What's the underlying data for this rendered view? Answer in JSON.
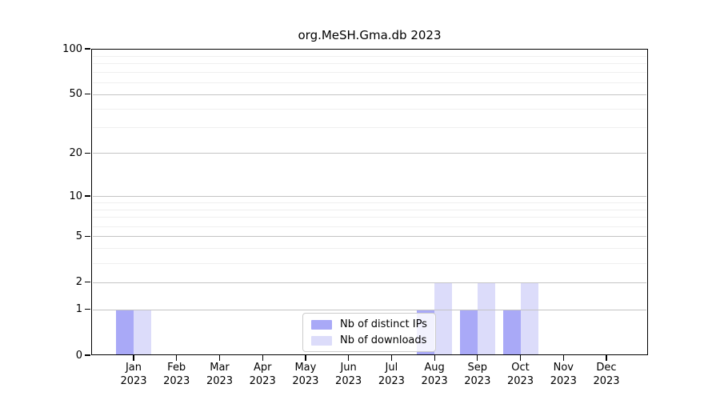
{
  "chart_data": {
    "type": "bar",
    "title": "org.MeSH.Gma.db 2023",
    "categories": [
      {
        "month": "Jan",
        "year": "2023"
      },
      {
        "month": "Feb",
        "year": "2023"
      },
      {
        "month": "Mar",
        "year": "2023"
      },
      {
        "month": "Apr",
        "year": "2023"
      },
      {
        "month": "May",
        "year": "2023"
      },
      {
        "month": "Jun",
        "year": "2023"
      },
      {
        "month": "Jul",
        "year": "2023"
      },
      {
        "month": "Aug",
        "year": "2023"
      },
      {
        "month": "Sep",
        "year": "2023"
      },
      {
        "month": "Oct",
        "year": "2023"
      },
      {
        "month": "Nov",
        "year": "2023"
      },
      {
        "month": "Dec",
        "year": "2023"
      }
    ],
    "series": [
      {
        "name": "Nb of distinct IPs",
        "color": "#a9a9f7",
        "values": [
          1,
          0,
          0,
          0,
          0,
          0,
          0,
          1,
          1,
          1,
          0,
          0
        ]
      },
      {
        "name": "Nb of downloads",
        "color": "#dcdcfa",
        "values": [
          1,
          0,
          0,
          0,
          0,
          0,
          0,
          2,
          2,
          2,
          0,
          0
        ]
      }
    ],
    "yscale": "log1p",
    "ylim": [
      0,
      100
    ],
    "yticks": [
      0,
      1,
      2,
      5,
      10,
      20,
      50,
      100
    ],
    "major_gridlines": [
      1,
      2,
      5,
      10,
      20,
      50,
      100
    ],
    "minor_gridlines": [
      3,
      4,
      6,
      7,
      8,
      9,
      30,
      40,
      60,
      70,
      80,
      90
    ],
    "grid": "on",
    "legend_position": "inside-bottom-center",
    "background_color": "#ffffff",
    "spine_color": "#000000"
  }
}
